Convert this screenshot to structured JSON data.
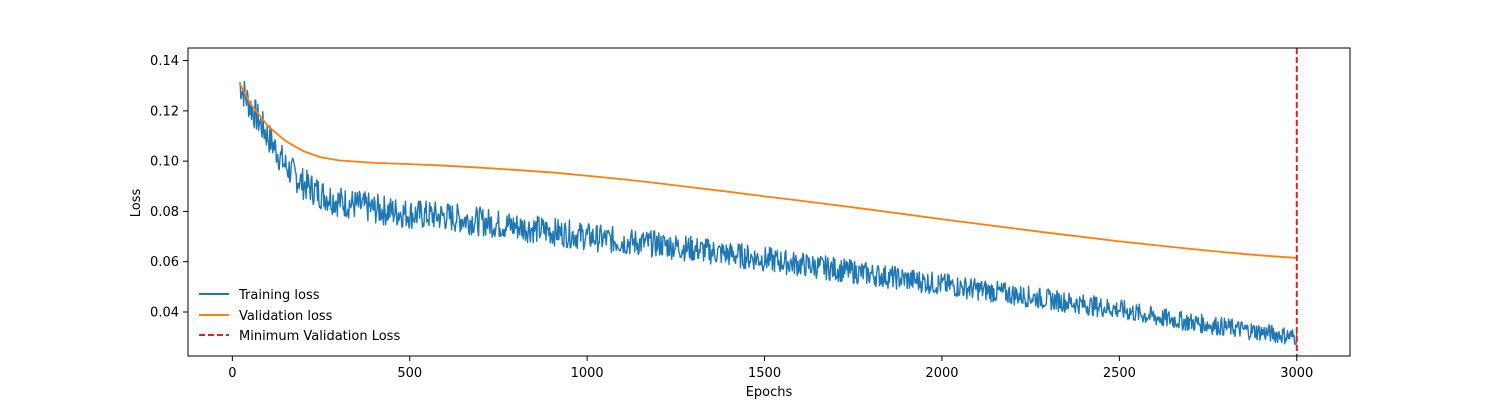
{
  "chart_data": {
    "type": "line",
    "title": "",
    "xlabel": "Epochs",
    "ylabel": "Loss",
    "xlim": [
      -125,
      3150
    ],
    "ylim": [
      0.0225,
      0.145
    ],
    "xticks": [
      0,
      500,
      1000,
      1500,
      2000,
      2500,
      3000
    ],
    "yticks": [
      0.04,
      0.06,
      0.08,
      0.1,
      0.12,
      0.14
    ],
    "xtick_labels": [
      "0",
      "500",
      "1000",
      "1500",
      "2000",
      "2500",
      "3000"
    ],
    "ytick_labels": [
      "0.04",
      "0.06",
      "0.08",
      "0.10",
      "0.12",
      "0.14"
    ],
    "grid": false,
    "legend_position": "lower-left",
    "series": [
      {
        "name": "Training loss",
        "color": "#1f77b4",
        "style": "solid",
        "noisy": true,
        "x": [
          20,
          50,
          100,
          150,
          200,
          250,
          300,
          400,
          500,
          600,
          700,
          800,
          900,
          1000,
          1100,
          1200,
          1300,
          1400,
          1500,
          1600,
          1700,
          1800,
          1900,
          2000,
          2100,
          2200,
          2300,
          2400,
          2500,
          2600,
          2700,
          2800,
          2900,
          3000
        ],
        "y": [
          0.131,
          0.122,
          0.11,
          0.098,
          0.091,
          0.087,
          0.084,
          0.081,
          0.079,
          0.078,
          0.076,
          0.074,
          0.072,
          0.07,
          0.068,
          0.067,
          0.065,
          0.063,
          0.061,
          0.059,
          0.057,
          0.055,
          0.053,
          0.051,
          0.049,
          0.047,
          0.045,
          0.043,
          0.041,
          0.038,
          0.036,
          0.034,
          0.032,
          0.03
        ]
      },
      {
        "name": "Validation loss",
        "color": "#ff7f0e",
        "style": "solid",
        "noisy": false,
        "x": [
          20,
          50,
          100,
          150,
          200,
          250,
          300,
          400,
          500,
          600,
          700,
          800,
          900,
          1000,
          1100,
          1200,
          1300,
          1400,
          1500,
          1600,
          1700,
          1800,
          1900,
          2000,
          2100,
          2200,
          2300,
          2400,
          2500,
          2600,
          2700,
          2800,
          2900,
          3000
        ],
        "y": [
          0.131,
          0.123,
          0.114,
          0.108,
          0.104,
          0.1015,
          0.1003,
          0.0993,
          0.0988,
          0.0982,
          0.0974,
          0.0965,
          0.0955,
          0.0942,
          0.0928,
          0.0912,
          0.0895,
          0.0878,
          0.086,
          0.0843,
          0.0825,
          0.0807,
          0.0788,
          0.0769,
          0.0751,
          0.0733,
          0.0715,
          0.0698,
          0.0681,
          0.0666,
          0.0651,
          0.0637,
          0.0625,
          0.0615
        ]
      }
    ],
    "vline": {
      "name": "Minimum Validation Loss",
      "x": 3000,
      "color": "#d62728",
      "style": "dashed"
    }
  }
}
